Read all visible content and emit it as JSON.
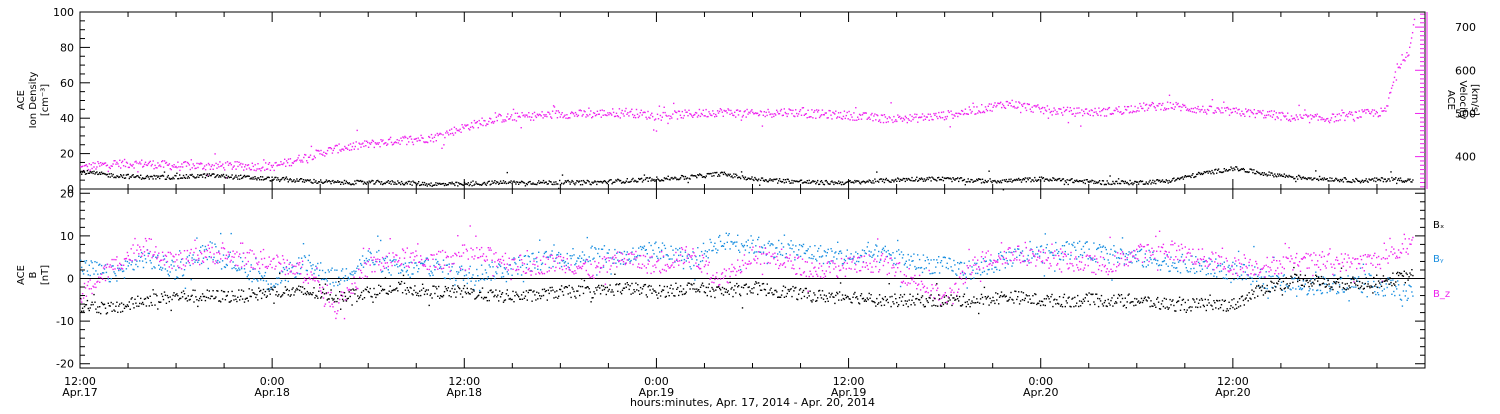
{
  "colors": {
    "density": "#000000",
    "velocity": "#ee22ee",
    "bx": "#000000",
    "by": "#1a8fe0",
    "bz": "#ee22ee",
    "axis": "#000000"
  },
  "chart_data": [
    {
      "type": "scatter",
      "panel": "plasma",
      "ylabel": [
        "ACE",
        "Ion Density",
        "[cm⁻³]"
      ],
      "ylim": [
        0,
        100
      ],
      "yticks": [
        0,
        20,
        40,
        60,
        80,
        100
      ],
      "y2label": [
        "ACE",
        "Velocity",
        "[km/s]"
      ],
      "y2lim": [
        325,
        735
      ],
      "y2ticks": [
        400,
        500,
        600,
        700
      ],
      "x_domain_hours": [
        0,
        84
      ],
      "series": [
        {
          "key": "density",
          "axis": "left",
          "x_hours": [
            0,
            2,
            4,
            6,
            8,
            10,
            12,
            14,
            16,
            18,
            20,
            22,
            24,
            26,
            28,
            30,
            32,
            34,
            36,
            38,
            40,
            42,
            44,
            46,
            48,
            50,
            52,
            54,
            56,
            58,
            60,
            62,
            64,
            66,
            68,
            70,
            72,
            74,
            76,
            78,
            80,
            82,
            83.2
          ],
          "values": [
            10,
            8,
            7,
            7,
            8,
            7,
            6,
            5,
            4,
            4,
            4,
            3,
            3,
            4,
            4,
            4,
            4,
            5,
            6,
            7,
            9,
            6,
            5,
            4,
            4,
            5,
            6,
            6,
            5,
            5,
            6,
            5,
            4,
            4,
            5,
            9,
            12,
            9,
            7,
            6,
            5,
            6,
            5
          ]
        },
        {
          "key": "velocity",
          "axis": "right",
          "x_hours": [
            0,
            2,
            4,
            6,
            8,
            10,
            12,
            14,
            16,
            18,
            20,
            22,
            24,
            26,
            28,
            30,
            32,
            34,
            36,
            38,
            40,
            42,
            44,
            46,
            48,
            50,
            52,
            54,
            56,
            58,
            60,
            62,
            64,
            66,
            68,
            70,
            72,
            74,
            76,
            78,
            80,
            81.5,
            82.2,
            83.0,
            83.3
          ],
          "values": [
            375,
            385,
            385,
            380,
            380,
            380,
            378,
            400,
            420,
            430,
            440,
            445,
            470,
            490,
            495,
            500,
            500,
            505,
            495,
            500,
            505,
            500,
            505,
            500,
            497,
            490,
            490,
            497,
            510,
            525,
            510,
            505,
            505,
            515,
            520,
            510,
            505,
            500,
            490,
            490,
            500,
            505,
            605,
            650,
            715
          ]
        }
      ]
    },
    {
      "type": "scatter",
      "panel": "magnetic",
      "ylabel": [
        "ACE",
        "B",
        "[nT]"
      ],
      "ylim": [
        -21,
        21
      ],
      "yticks": [
        -20,
        -10,
        0,
        10,
        20
      ],
      "zero_line": true,
      "x_domain_hours": [
        0,
        84
      ],
      "x_tick_hours": [
        0,
        12,
        24,
        36,
        48,
        60,
        72,
        84
      ],
      "x_tick_labels": [
        [
          "12:00",
          "Apr.17"
        ],
        [
          "0:00",
          "Apr.18"
        ],
        [
          "12:00",
          "Apr.18"
        ],
        [
          "0:00",
          "Apr.19"
        ],
        [
          "12:00",
          "Apr.19"
        ],
        [
          "0:00",
          "Apr.20"
        ],
        [
          "12:00",
          "Apr.20"
        ],
        [
          "",
          ""
        ]
      ],
      "xlabel": "hours:minutes, Apr. 17, 2014 - Apr. 20, 2014",
      "series": [
        {
          "key": "bx",
          "name": "Bₓ",
          "x_hours": [
            0,
            2,
            4,
            6,
            8,
            10,
            12,
            14,
            16,
            18,
            20,
            22,
            24,
            26,
            28,
            30,
            32,
            34,
            36,
            38,
            40,
            42,
            44,
            46,
            48,
            50,
            52,
            54,
            56,
            58,
            60,
            62,
            64,
            66,
            68,
            70,
            72,
            74,
            76,
            78,
            80,
            82,
            83.2
          ],
          "values": [
            -6,
            -7,
            -5,
            -4,
            -4,
            -4,
            -3,
            -3,
            -4,
            -3,
            -2,
            -3,
            -3,
            -4,
            -4,
            -3,
            -3,
            -2,
            -3,
            -2,
            -3,
            -2,
            -3,
            -4,
            -4,
            -5,
            -5,
            -5,
            -5,
            -4,
            -5,
            -5,
            -5,
            -5,
            -6,
            -6,
            -6,
            -2,
            0,
            -1,
            -1,
            0,
            1
          ]
        },
        {
          "key": "by",
          "name": "Bᵧ",
          "x_hours": [
            0,
            2,
            4,
            6,
            8,
            10,
            12,
            14,
            16,
            18,
            20,
            22,
            24,
            26,
            28,
            30,
            32,
            34,
            36,
            38,
            40,
            42,
            44,
            46,
            48,
            50,
            52,
            54,
            56,
            58,
            60,
            62,
            64,
            66,
            68,
            70,
            72,
            74,
            76,
            78,
            80,
            82,
            83.2
          ],
          "values": [
            3,
            1,
            5,
            2,
            7,
            3,
            -1,
            4,
            0,
            5,
            2,
            3,
            1,
            2,
            4,
            5,
            6,
            5,
            7,
            4,
            9,
            8,
            7,
            6,
            5,
            6,
            4,
            3,
            2,
            5,
            6,
            7,
            6,
            5,
            4,
            3,
            2,
            0,
            -2,
            -1,
            -1,
            -2,
            -4
          ]
        },
        {
          "key": "bz",
          "name": "B_z",
          "x_hours": [
            0,
            2,
            4,
            6,
            8,
            10,
            12,
            14,
            16,
            18,
            20,
            22,
            24,
            26,
            28,
            30,
            32,
            34,
            36,
            38,
            40,
            42,
            44,
            46,
            48,
            50,
            52,
            54,
            56,
            58,
            60,
            62,
            64,
            66,
            68,
            70,
            72,
            74,
            76,
            78,
            80,
            82,
            83.2
          ],
          "values": [
            -4,
            3,
            8,
            4,
            6,
            5,
            4,
            2,
            -6,
            3,
            5,
            4,
            6,
            5,
            3,
            4,
            2,
            5,
            3,
            6,
            0,
            6,
            4,
            2,
            3,
            4,
            0,
            -5,
            4,
            6,
            5,
            4,
            3,
            6,
            7,
            5,
            3,
            3,
            4,
            4,
            4,
            5,
            10
          ]
        }
      ]
    }
  ]
}
